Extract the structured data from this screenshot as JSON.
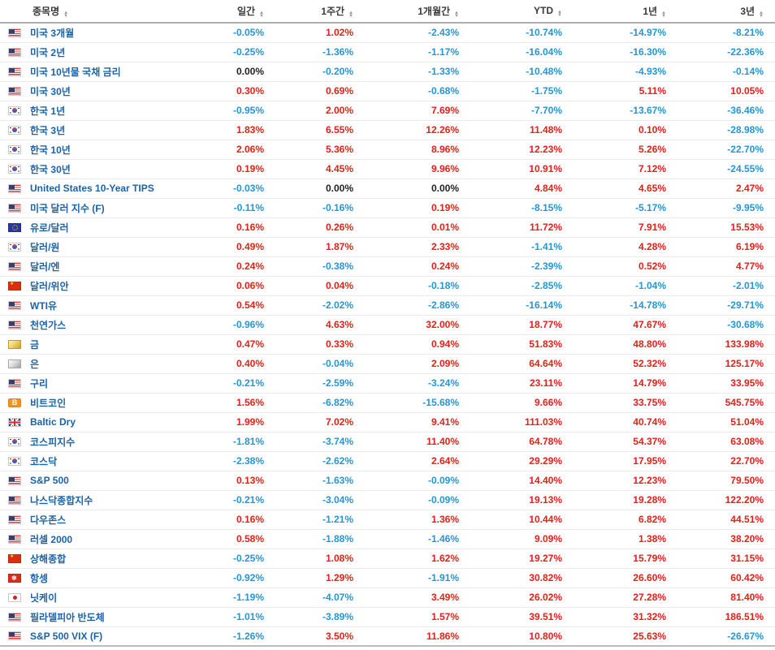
{
  "colors": {
    "up": "#e32119",
    "down": "#2596d6",
    "flat": "#222222",
    "name_link": "#1b63a8"
  },
  "table": {
    "columns": [
      {
        "label": "종목명"
      },
      {
        "label": "일간"
      },
      {
        "label": "1주간"
      },
      {
        "label": "1개월간"
      },
      {
        "label": "YTD"
      },
      {
        "label": "1년"
      },
      {
        "label": "3년"
      }
    ],
    "rows": [
      {
        "icon": "us-flag",
        "name": "미국 3개월",
        "values": [
          "-0.05%",
          "1.02%",
          "-2.43%",
          "-10.74%",
          "-14.97%",
          "-8.21%"
        ]
      },
      {
        "icon": "us-flag",
        "name": "미국 2년",
        "values": [
          "-0.25%",
          "-1.36%",
          "-1.17%",
          "-16.04%",
          "-16.30%",
          "-22.36%"
        ]
      },
      {
        "icon": "us-flag",
        "name": "미국 10년물 국채 금리",
        "values": [
          "0.00%",
          "-0.20%",
          "-1.33%",
          "-10.48%",
          "-4.93%",
          "-0.14%"
        ]
      },
      {
        "icon": "us-flag",
        "name": "미국 30년",
        "values": [
          "0.30%",
          "0.69%",
          "-0.68%",
          "-1.75%",
          "5.11%",
          "10.05%"
        ]
      },
      {
        "icon": "kr-flag",
        "name": "한국 1년",
        "values": [
          "-0.95%",
          "2.00%",
          "7.69%",
          "-7.70%",
          "-13.67%",
          "-36.46%"
        ]
      },
      {
        "icon": "kr-flag",
        "name": "한국 3년",
        "values": [
          "1.83%",
          "6.55%",
          "12.26%",
          "11.48%",
          "0.10%",
          "-28.98%"
        ]
      },
      {
        "icon": "kr-flag",
        "name": "한국 10년",
        "values": [
          "2.06%",
          "5.36%",
          "8.96%",
          "12.23%",
          "5.26%",
          "-22.70%"
        ]
      },
      {
        "icon": "kr-flag",
        "name": "한국 30년",
        "values": [
          "0.19%",
          "4.45%",
          "9.96%",
          "10.91%",
          "7.12%",
          "-24.55%"
        ]
      },
      {
        "icon": "us-flag",
        "name": "United States 10-Year TIPS",
        "values": [
          "-0.03%",
          "0.00%",
          "0.00%",
          "4.84%",
          "4.65%",
          "2.47%"
        ]
      },
      {
        "icon": "us-flag",
        "name": "미국 달러 지수 (F)",
        "values": [
          "-0.11%",
          "-0.16%",
          "0.19%",
          "-8.15%",
          "-5.17%",
          "-9.95%"
        ]
      },
      {
        "icon": "eu-flag",
        "name": "유로/달러",
        "values": [
          "0.16%",
          "0.26%",
          "0.01%",
          "11.72%",
          "7.91%",
          "15.53%"
        ]
      },
      {
        "icon": "kr-flag",
        "name": "달러/원",
        "values": [
          "0.49%",
          "1.87%",
          "2.33%",
          "-1.41%",
          "4.28%",
          "6.19%"
        ]
      },
      {
        "icon": "us-flag",
        "name": "달러/엔",
        "values": [
          "0.24%",
          "-0.38%",
          "0.24%",
          "-2.39%",
          "0.52%",
          "4.77%"
        ]
      },
      {
        "icon": "cn-flag",
        "name": "달러/위안",
        "values": [
          "0.06%",
          "0.04%",
          "-0.18%",
          "-2.85%",
          "-1.04%",
          "-2.01%"
        ]
      },
      {
        "icon": "us-flag",
        "name": "WTI유",
        "values": [
          "0.54%",
          "-2.02%",
          "-2.86%",
          "-16.14%",
          "-14.78%",
          "-29.71%"
        ]
      },
      {
        "icon": "us-flag",
        "name": "천연가스",
        "values": [
          "-0.96%",
          "4.63%",
          "32.00%",
          "18.77%",
          "47.67%",
          "-30.68%"
        ]
      },
      {
        "icon": "gold-bar",
        "name": "금",
        "values": [
          "0.47%",
          "0.33%",
          "0.94%",
          "51.83%",
          "48.80%",
          "133.98%"
        ]
      },
      {
        "icon": "silver-bar",
        "name": "은",
        "values": [
          "0.40%",
          "-0.04%",
          "2.09%",
          "64.64%",
          "52.32%",
          "125.17%"
        ]
      },
      {
        "icon": "us-flag",
        "name": "구리",
        "values": [
          "-0.21%",
          "-2.59%",
          "-3.24%",
          "23.11%",
          "14.79%",
          "33.95%"
        ]
      },
      {
        "icon": "bitcoin",
        "name": "비트코인",
        "values": [
          "1.56%",
          "-6.82%",
          "-15.68%",
          "9.66%",
          "33.75%",
          "545.75%"
        ]
      },
      {
        "icon": "uk-flag",
        "name": "Baltic Dry",
        "values": [
          "1.99%",
          "7.02%",
          "9.41%",
          "111.03%",
          "40.74%",
          "51.04%"
        ]
      },
      {
        "icon": "kr-flag",
        "name": "코스피지수",
        "values": [
          "-1.81%",
          "-3.74%",
          "11.40%",
          "64.78%",
          "54.37%",
          "63.08%"
        ]
      },
      {
        "icon": "kr-flag",
        "name": "코스닥",
        "values": [
          "-2.38%",
          "-2.62%",
          "2.64%",
          "29.29%",
          "17.95%",
          "22.70%"
        ]
      },
      {
        "icon": "us-flag",
        "name": "S&P 500",
        "values": [
          "0.13%",
          "-1.63%",
          "-0.09%",
          "14.40%",
          "12.23%",
          "79.50%"
        ]
      },
      {
        "icon": "us-flag",
        "name": "나스닥종합지수",
        "values": [
          "-0.21%",
          "-3.04%",
          "-0.09%",
          "19.13%",
          "19.28%",
          "122.20%"
        ]
      },
      {
        "icon": "us-flag",
        "name": "다우존스",
        "values": [
          "0.16%",
          "-1.21%",
          "1.36%",
          "10.44%",
          "6.82%",
          "44.51%"
        ]
      },
      {
        "icon": "us-flag",
        "name": "러셀 2000",
        "values": [
          "0.58%",
          "-1.88%",
          "-1.46%",
          "9.09%",
          "1.38%",
          "38.20%"
        ]
      },
      {
        "icon": "cn-flag",
        "name": "상해종합",
        "values": [
          "-0.25%",
          "1.08%",
          "1.62%",
          "19.27%",
          "15.79%",
          "31.15%"
        ]
      },
      {
        "icon": "hk-flag",
        "name": "항셍",
        "values": [
          "-0.92%",
          "1.29%",
          "-1.91%",
          "30.82%",
          "26.60%",
          "60.42%"
        ]
      },
      {
        "icon": "jp-flag",
        "name": "닛케이",
        "values": [
          "-1.19%",
          "-4.07%",
          "3.49%",
          "26.02%",
          "27.28%",
          "81.40%"
        ]
      },
      {
        "icon": "us-flag",
        "name": "필라델피아 반도체",
        "values": [
          "-1.01%",
          "-3.89%",
          "1.57%",
          "39.51%",
          "31.32%",
          "186.51%"
        ]
      },
      {
        "icon": "us-flag",
        "name": "S&P 500 VIX (F)",
        "values": [
          "-1.26%",
          "3.50%",
          "11.86%",
          "10.80%",
          "25.63%",
          "-26.67%"
        ]
      }
    ]
  }
}
